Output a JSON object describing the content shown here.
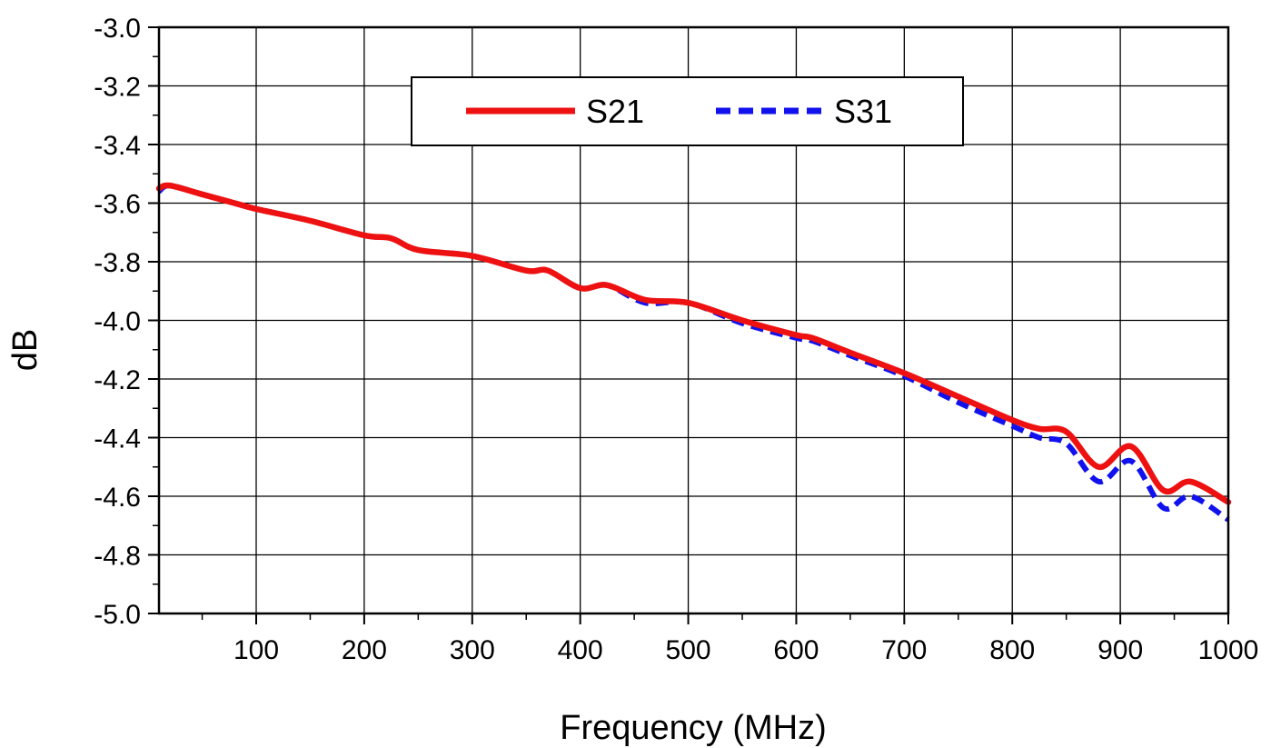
{
  "chart_data": {
    "type": "line",
    "title": "",
    "xlabel": "Frequency (MHz)",
    "ylabel": "dB",
    "xlim": [
      10,
      1000
    ],
    "ylim": [
      -5.0,
      -3.0
    ],
    "grid": true,
    "legend_position": "top-center",
    "x_ticks": [
      100,
      200,
      300,
      400,
      500,
      600,
      700,
      800,
      900,
      1000
    ],
    "x_tick_labels": [
      "100",
      "200",
      "300",
      "400",
      "500",
      "600",
      "700",
      "800",
      "900",
      "1000"
    ],
    "y_ticks": [
      -3.0,
      -3.2,
      -3.4,
      -3.6,
      -3.8,
      -4.0,
      -4.2,
      -4.4,
      -4.6,
      -4.8,
      -5.0
    ],
    "y_tick_labels": [
      "-3.0",
      "-3.2",
      "-3.4",
      "-3.6",
      "-3.8",
      "-4.0",
      "-4.2",
      "-4.4",
      "-4.6",
      "-4.8",
      "-5.0"
    ],
    "series": [
      {
        "name": "S21",
        "color": "#ee1111",
        "style": "solid",
        "x": [
          10,
          20,
          50,
          80,
          100,
          150,
          200,
          225,
          250,
          300,
          350,
          370,
          400,
          425,
          460,
          500,
          550,
          600,
          615,
          650,
          700,
          750,
          800,
          825,
          850,
          880,
          910,
          940,
          965,
          1000
        ],
        "y": [
          -3.55,
          -3.54,
          -3.57,
          -3.6,
          -3.62,
          -3.66,
          -3.71,
          -3.72,
          -3.76,
          -3.78,
          -3.83,
          -3.83,
          -3.89,
          -3.88,
          -3.93,
          -3.94,
          -4.0,
          -4.05,
          -4.06,
          -4.11,
          -4.18,
          -4.26,
          -4.34,
          -4.37,
          -4.38,
          -4.5,
          -4.43,
          -4.58,
          -4.55,
          -4.62
        ]
      },
      {
        "name": "S31",
        "color": "#1111ee",
        "style": "dashed",
        "x": [
          10,
          20,
          50,
          80,
          100,
          150,
          200,
          225,
          250,
          300,
          350,
          370,
          400,
          425,
          460,
          500,
          550,
          600,
          615,
          650,
          700,
          750,
          800,
          825,
          850,
          880,
          910,
          940,
          965,
          1000
        ],
        "y": [
          -3.56,
          -3.54,
          -3.57,
          -3.6,
          -3.62,
          -3.66,
          -3.71,
          -3.72,
          -3.76,
          -3.78,
          -3.83,
          -3.83,
          -3.89,
          -3.88,
          -3.94,
          -3.94,
          -4.01,
          -4.06,
          -4.07,
          -4.12,
          -4.19,
          -4.28,
          -4.36,
          -4.4,
          -4.42,
          -4.55,
          -4.48,
          -4.64,
          -4.6,
          -4.68
        ]
      }
    ]
  }
}
